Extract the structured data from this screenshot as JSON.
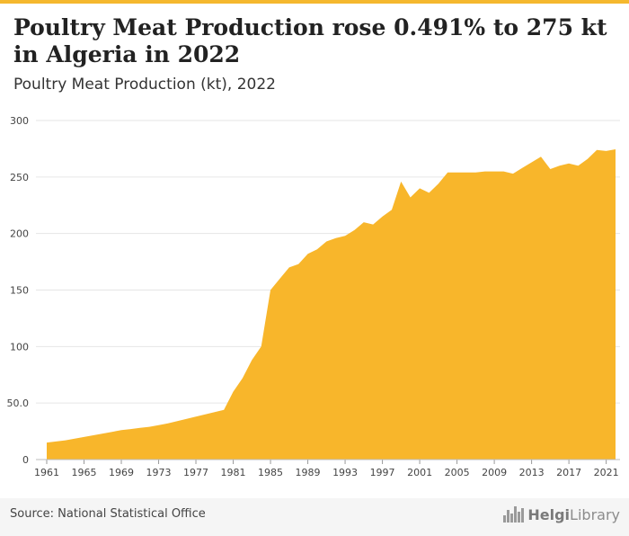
{
  "header": {
    "title": "Poultry Meat Production rose 0.491% to 275 kt in Algeria in 2022",
    "subtitle": "Poultry Meat Production (kt), 2022"
  },
  "footer": {
    "source": "Source: National Statistical Office",
    "logo_bold": "Helgi",
    "logo_rest": "Library"
  },
  "colors": {
    "area": "#f8b62b",
    "accent": "#f5b82e",
    "grid": "#e6e6e6",
    "axis_text": "#444444"
  },
  "chart_data": {
    "type": "area",
    "title": "Poultry Meat Production (kt), 2022",
    "xlabel": "",
    "ylabel": "",
    "x": [
      1961,
      1962,
      1963,
      1964,
      1965,
      1966,
      1967,
      1968,
      1969,
      1970,
      1971,
      1972,
      1973,
      1974,
      1975,
      1976,
      1977,
      1978,
      1979,
      1980,
      1981,
      1982,
      1983,
      1984,
      1985,
      1986,
      1987,
      1988,
      1989,
      1990,
      1991,
      1992,
      1993,
      1994,
      1995,
      1996,
      1997,
      1998,
      1999,
      2000,
      2001,
      2002,
      2003,
      2004,
      2005,
      2006,
      2007,
      2008,
      2009,
      2010,
      2011,
      2012,
      2013,
      2014,
      2015,
      2016,
      2017,
      2018,
      2019,
      2020,
      2021,
      2022
    ],
    "series": [
      {
        "values": [
          15,
          16,
          17,
          18.5,
          20,
          21.5,
          23,
          24.5,
          26,
          27,
          28,
          29,
          30.5,
          32,
          34,
          36,
          38,
          40,
          42,
          44,
          60,
          72,
          88,
          100,
          150,
          160,
          170,
          173,
          182,
          186,
          193,
          196,
          198,
          203,
          210,
          208,
          215,
          221,
          246,
          232,
          240,
          236,
          244,
          254,
          254,
          254,
          254,
          255,
          255,
          255,
          253,
          258,
          263,
          268,
          257,
          260,
          262,
          260,
          266,
          274,
          273,
          274.5
        ]
      }
    ],
    "xticks": [
      1961,
      1965,
      1969,
      1973,
      1977,
      1981,
      1985,
      1989,
      1993,
      1997,
      2001,
      2005,
      2009,
      2013,
      2017,
      2021
    ],
    "yticks": [
      0,
      50,
      100,
      150,
      200,
      250,
      300
    ],
    "ytick_labels": [
      "0",
      "50.0",
      "100",
      "150",
      "200",
      "250",
      "300"
    ],
    "xlim": [
      1961,
      2022
    ],
    "ylim": [
      0,
      300
    ],
    "grid": true,
    "legend": "none"
  }
}
